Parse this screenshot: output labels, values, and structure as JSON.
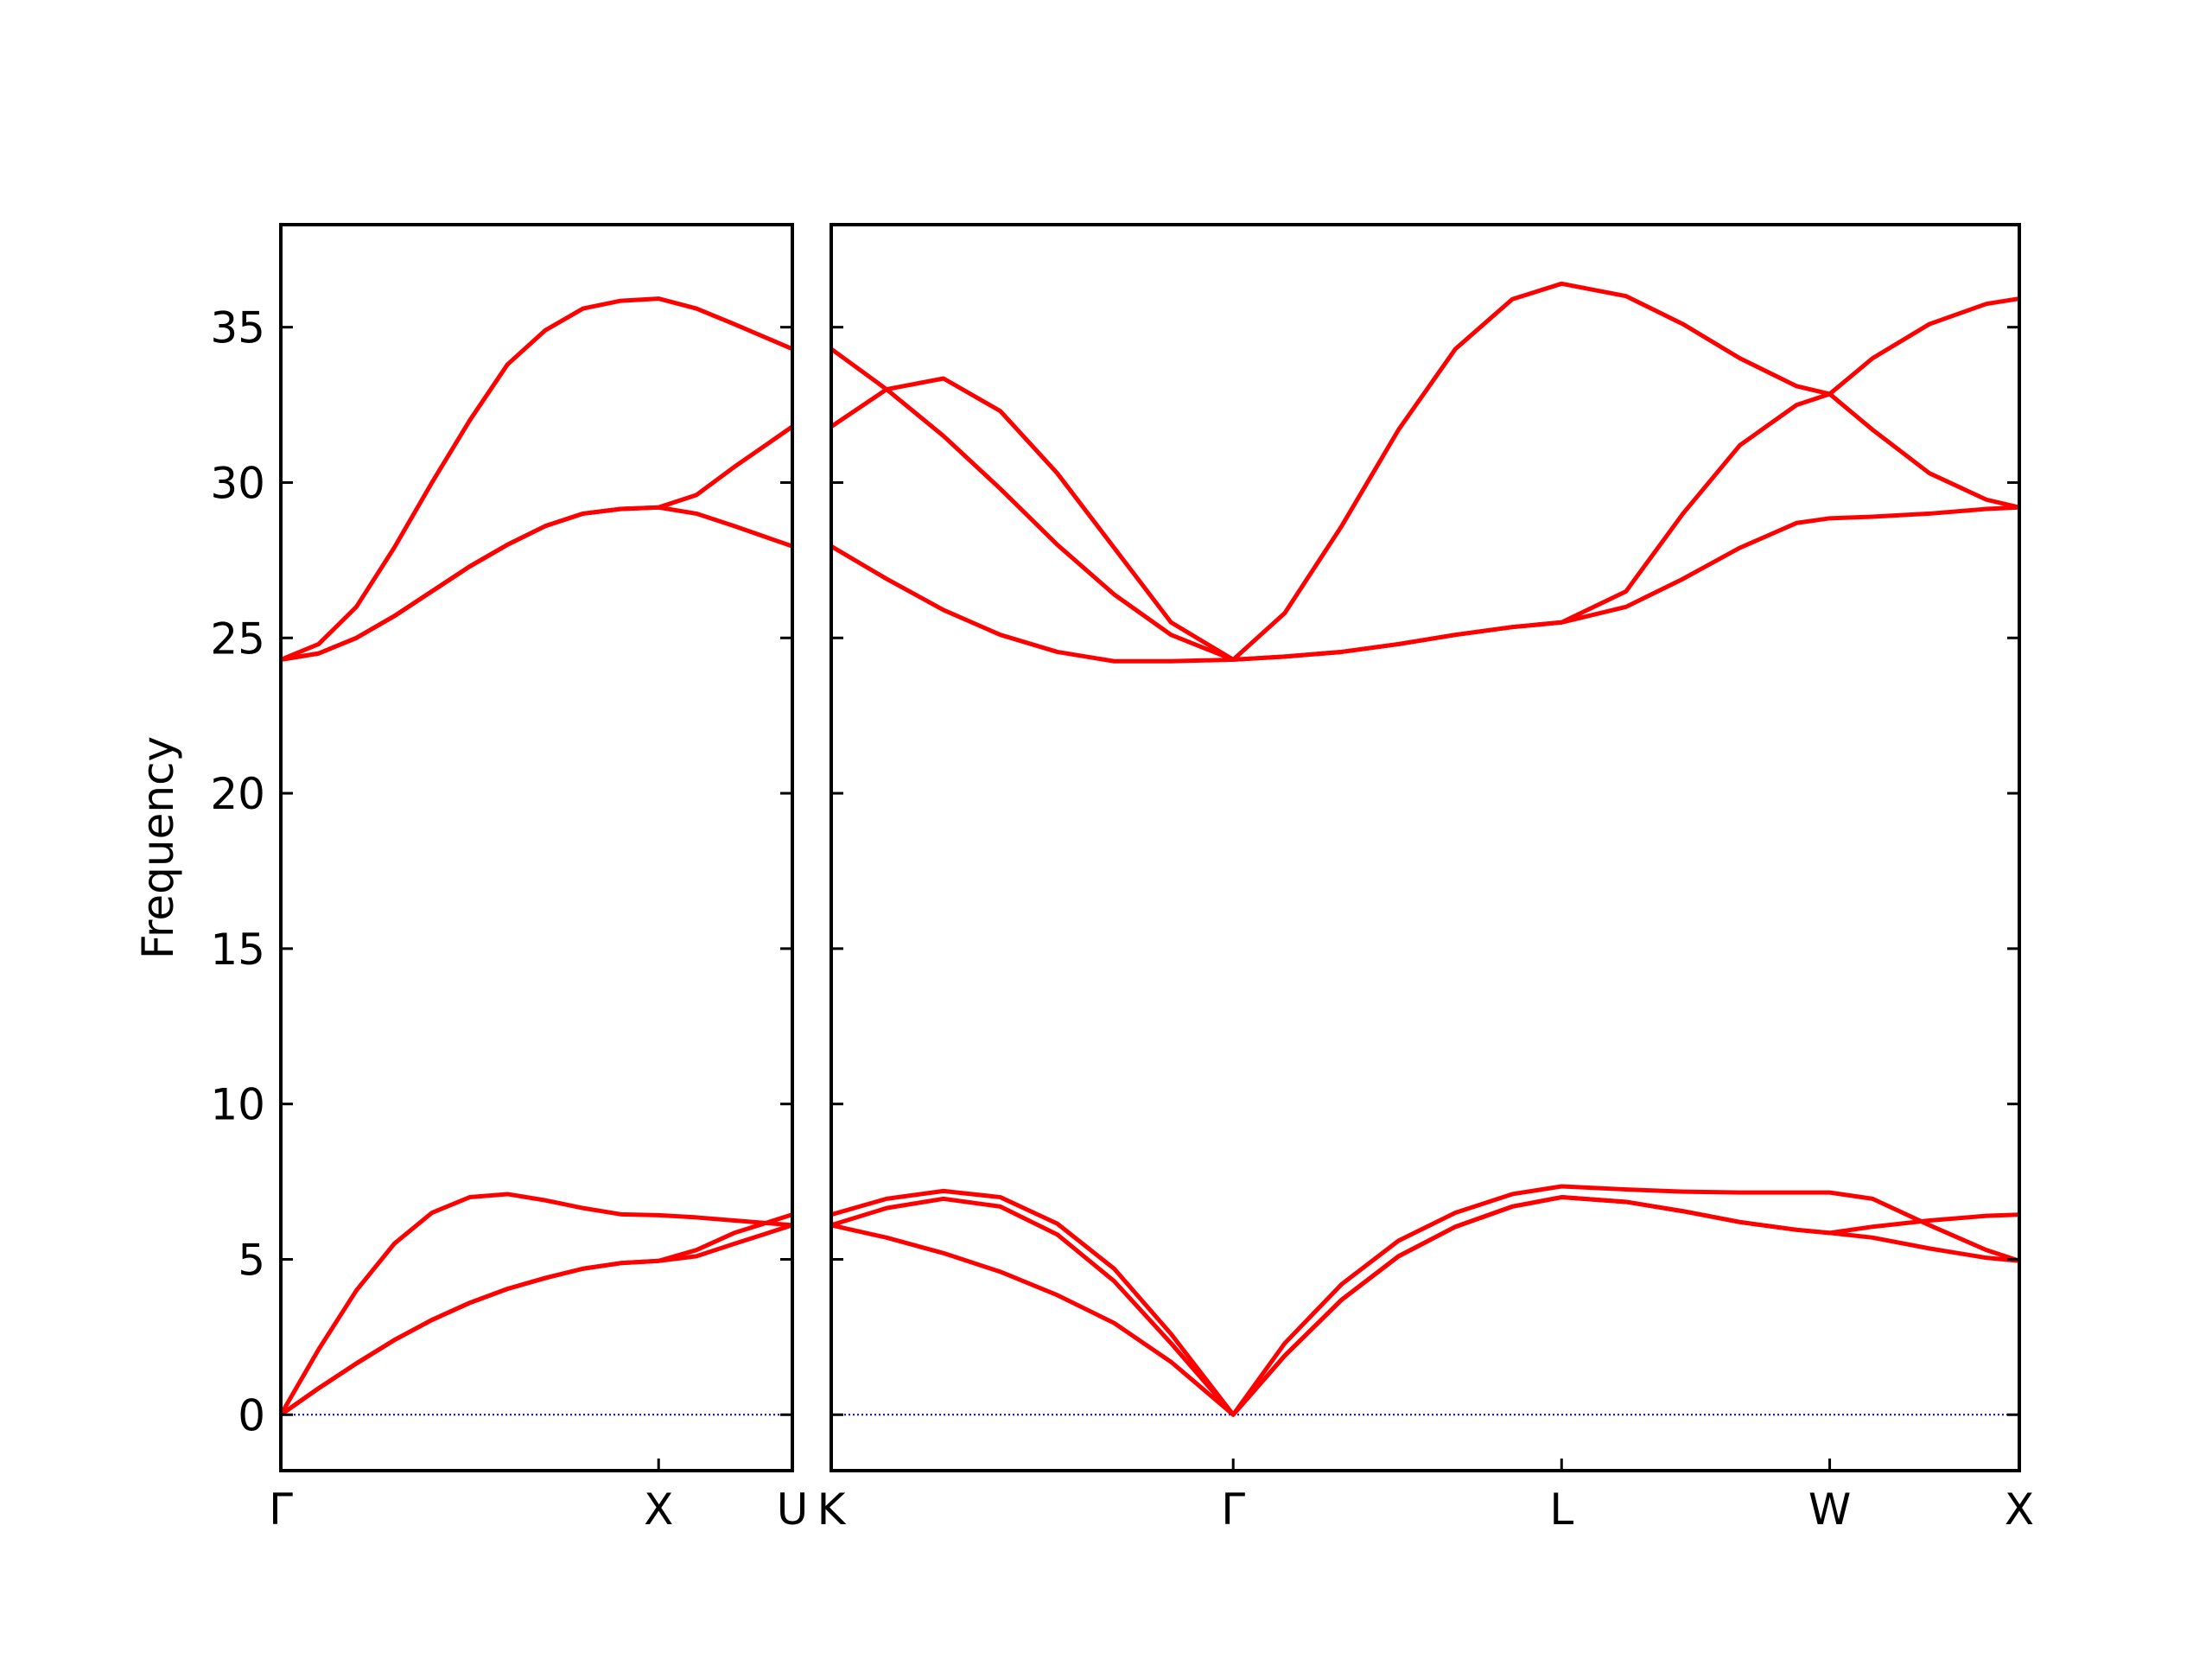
{
  "chart_data": [
    {
      "type": "line",
      "ylabel": "Frequency",
      "x": [
        0,
        0.1,
        0.2,
        0.3,
        0.4,
        0.5,
        0.6,
        0.7,
        0.8,
        0.9,
        1.0,
        1.1,
        1.2,
        1.354
      ],
      "xlim": [
        0,
        1.354
      ],
      "xticks": [
        {
          "value": 0,
          "label": "Γ"
        },
        {
          "value": 1.0,
          "label": "X"
        },
        {
          "value": 1.354,
          "label": "U"
        }
      ],
      "ylim": [
        -1.8,
        38.3
      ],
      "yticks": [
        0,
        5,
        10,
        15,
        20,
        25,
        30,
        35
      ],
      "hline": {
        "value": 0,
        "color": "#0000cc"
      },
      "series": [
        {
          "color": "#ff0000",
          "values": [
            0,
            0.85,
            1.65,
            2.4,
            3.05,
            3.6,
            4.05,
            4.4,
            4.7,
            4.88,
            4.95,
            5.1,
            5.5,
            6.1
          ]
        },
        {
          "color": "#ff0000",
          "values": [
            0,
            0.85,
            1.65,
            2.4,
            3.05,
            3.6,
            4.05,
            4.4,
            4.7,
            4.88,
            4.95,
            5.3,
            5.85,
            6.44
          ]
        },
        {
          "color": "#ff0000",
          "values": [
            0,
            2.1,
            4.0,
            5.5,
            6.5,
            7.0,
            7.1,
            6.9,
            6.65,
            6.45,
            6.42,
            6.35,
            6.25,
            6.1
          ]
        },
        {
          "color": "#ff0000",
          "values": [
            24.3,
            24.5,
            25.0,
            25.7,
            26.5,
            27.3,
            28.0,
            28.6,
            29.0,
            29.15,
            29.2,
            29.0,
            28.6,
            27.95
          ]
        },
        {
          "color": "#ff0000",
          "values": [
            24.3,
            24.5,
            25.0,
            25.7,
            26.5,
            27.3,
            28.0,
            28.6,
            29.0,
            29.15,
            29.2,
            29.6,
            30.5,
            31.8
          ]
        },
        {
          "color": "#ff0000",
          "values": [
            24.3,
            24.8,
            26.0,
            27.9,
            30.0,
            32.0,
            33.8,
            34.9,
            35.6,
            35.85,
            35.92,
            35.6,
            35.1,
            34.3
          ]
        }
      ]
    },
    {
      "type": "line",
      "ytick_labels": false,
      "x": [
        1.354,
        1.5,
        1.65,
        1.8,
        1.95,
        2.1,
        2.25,
        2.414,
        2.55,
        2.7,
        2.85,
        3.0,
        3.15,
        3.28,
        3.45,
        3.6,
        3.75,
        3.9,
        3.987,
        4.1,
        4.25,
        4.4,
        4.487
      ],
      "xlim": [
        1.354,
        4.487
      ],
      "xticks": [
        {
          "value": 1.354,
          "label": "K"
        },
        {
          "value": 2.414,
          "label": "Γ"
        },
        {
          "value": 3.28,
          "label": "L"
        },
        {
          "value": 3.987,
          "label": "W"
        },
        {
          "value": 4.487,
          "label": "X"
        }
      ],
      "ylim": [
        -1.8,
        38.3
      ],
      "yticks": [
        0,
        5,
        10,
        15,
        20,
        25,
        30,
        35
      ],
      "hline": {
        "value": 0,
        "color": "#0000cc"
      },
      "series": [
        {
          "color": "#ff0000",
          "values": [
            6.1,
            5.7,
            5.2,
            4.6,
            3.85,
            2.95,
            1.7,
            0,
            1.9,
            3.7,
            5.1,
            6.05,
            6.7,
            7.0,
            6.85,
            6.55,
            6.2,
            5.95,
            5.85,
            5.7,
            5.35,
            5.05,
            4.95
          ]
        },
        {
          "color": "#ff0000",
          "values": [
            6.1,
            6.65,
            6.95,
            6.7,
            5.8,
            4.3,
            2.3,
            0,
            1.9,
            3.7,
            5.1,
            6.05,
            6.7,
            7.0,
            6.85,
            6.55,
            6.2,
            5.95,
            5.85,
            6.05,
            6.25,
            6.4,
            6.44
          ]
        },
        {
          "color": "#ff0000",
          "values": [
            6.44,
            6.95,
            7.2,
            7.0,
            6.15,
            4.7,
            2.6,
            0,
            2.3,
            4.2,
            5.6,
            6.5,
            7.1,
            7.35,
            7.25,
            7.18,
            7.15,
            7.15,
            7.15,
            6.95,
            6.1,
            5.3,
            4.95
          ]
        },
        {
          "color": "#ff0000",
          "values": [
            27.95,
            26.9,
            25.9,
            25.1,
            24.55,
            24.25,
            24.25,
            24.3,
            24.4,
            24.55,
            24.8,
            25.1,
            25.35,
            25.5,
            26.0,
            26.9,
            27.9,
            28.7,
            28.85,
            28.9,
            29.0,
            29.15,
            29.2
          ]
        },
        {
          "color": "#ff0000",
          "values": [
            31.8,
            33.0,
            33.35,
            32.3,
            30.3,
            27.9,
            25.5,
            24.3,
            24.4,
            24.55,
            24.8,
            25.1,
            25.35,
            25.5,
            26.5,
            29.0,
            31.2,
            32.5,
            32.85,
            31.7,
            30.3,
            29.45,
            29.2
          ]
        },
        {
          "color": "#ff0000",
          "values": [
            34.3,
            33.0,
            31.5,
            29.8,
            28.0,
            26.4,
            25.1,
            24.3,
            25.8,
            28.6,
            31.7,
            34.3,
            35.9,
            36.4,
            36.0,
            35.1,
            34.0,
            33.1,
            32.85,
            34.0,
            35.1,
            35.75,
            35.92
          ]
        }
      ]
    }
  ]
}
